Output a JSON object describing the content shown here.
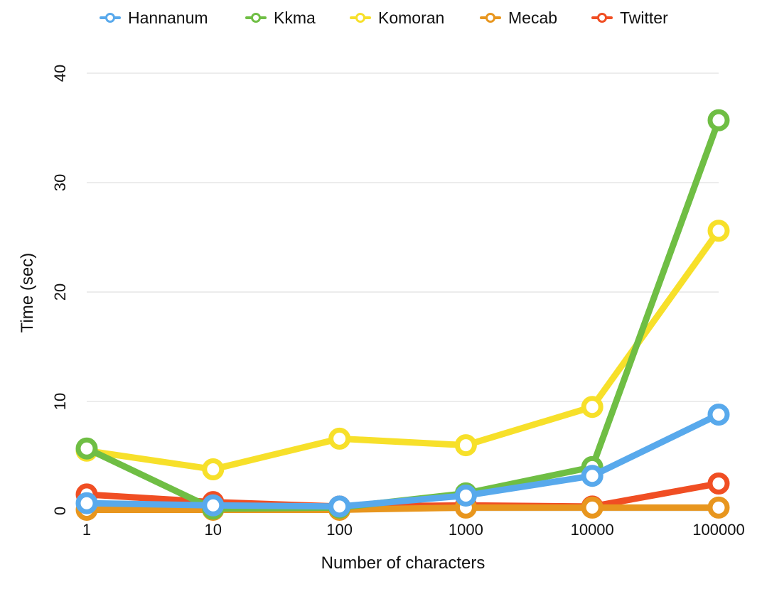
{
  "chart_data": {
    "type": "line",
    "xlabel": "Number of characters",
    "ylabel": "Time (sec)",
    "categories": [
      "1",
      "10",
      "100",
      "1000",
      "10000",
      "100000"
    ],
    "ylim": [
      0,
      40
    ],
    "yticks": [
      0,
      10,
      20,
      30,
      40
    ],
    "grid": true,
    "legend_position": "top",
    "series": [
      {
        "name": "Twitter",
        "color": "#f04e23",
        "values": [
          1.5,
          0.8,
          0.4,
          0.5,
          0.4,
          2.5
        ]
      },
      {
        "name": "Mecab",
        "color": "#e8961e",
        "values": [
          0.1,
          0.1,
          0.1,
          0.3,
          0.3,
          0.3
        ]
      },
      {
        "name": "Komoran",
        "color": "#f7e02a",
        "values": [
          5.5,
          3.8,
          6.6,
          6.0,
          9.5,
          25.6
        ]
      },
      {
        "name": "Kkma",
        "color": "#6fbe44",
        "values": [
          5.7,
          0.2,
          0.3,
          1.6,
          4.0,
          35.7
        ]
      },
      {
        "name": "Hannanum",
        "color": "#58a9ec",
        "values": [
          0.7,
          0.5,
          0.4,
          1.4,
          3.2,
          8.8
        ]
      }
    ]
  },
  "legend": {
    "items": [
      {
        "label": "Hannanum",
        "color": "#58a9ec"
      },
      {
        "label": "Kkma",
        "color": "#6fbe44"
      },
      {
        "label": "Komoran",
        "color": "#f7e02a"
      },
      {
        "label": "Mecab",
        "color": "#e8961e"
      },
      {
        "label": "Twitter",
        "color": "#f04e23"
      }
    ]
  }
}
